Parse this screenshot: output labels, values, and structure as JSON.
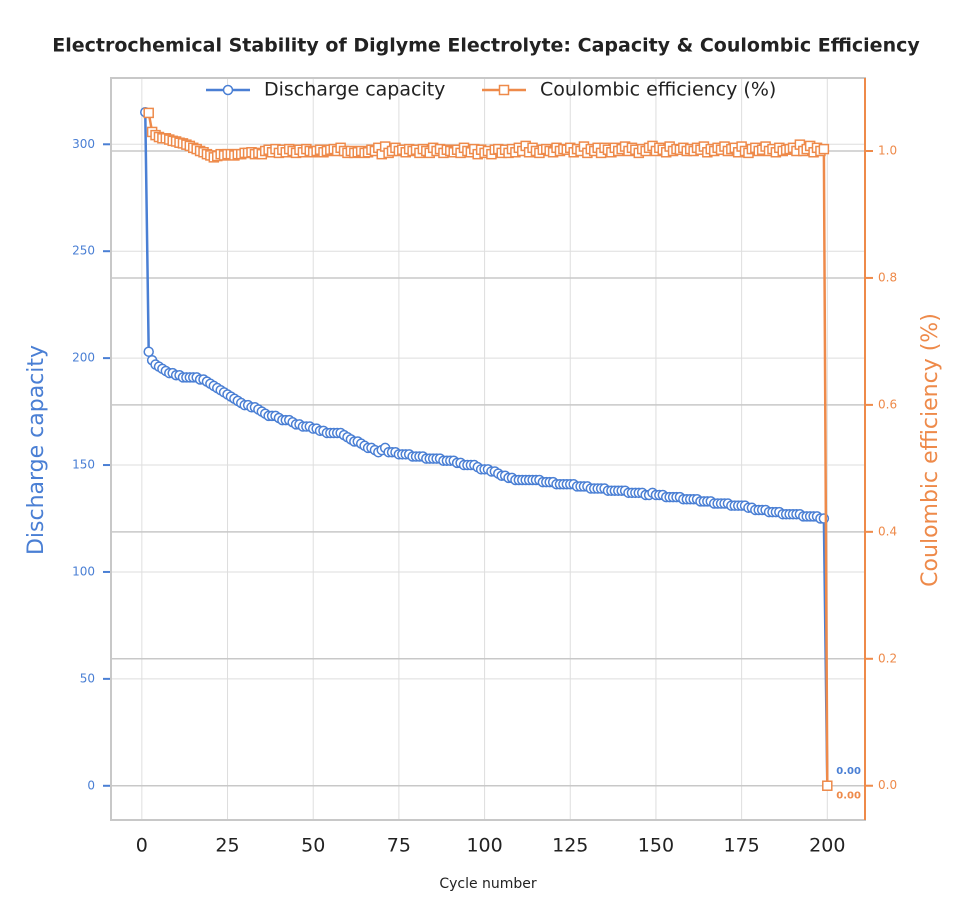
{
  "chart_data": {
    "type": "line",
    "title": "Electrochemical Stability of Diglyme Electrolyte: Capacity & Coulombic Efficiency",
    "xlabel": "Cycle number",
    "ylabel": "Discharge capacity",
    "y2label": "Coulombic efficiency (%)",
    "xlim": [
      -9,
      211
    ],
    "ylim": [
      -16,
      331
    ],
    "y2lim": [
      -0.054,
      1.115
    ],
    "xticks": [
      0,
      25,
      50,
      75,
      100,
      125,
      150,
      175,
      200
    ],
    "yticks": [
      0,
      50,
      100,
      150,
      200,
      250,
      300
    ],
    "y2ticks": [
      {
        "value": 0,
        "label": "0.0"
      },
      {
        "value": 0.2,
        "label": "0.2"
      },
      {
        "value": 0.4,
        "label": "0.4"
      },
      {
        "value": 0.6,
        "label": "0.6"
      },
      {
        "value": 0.8,
        "label": "0.8"
      },
      {
        "value": 1,
        "label": "1.0"
      }
    ],
    "grid": true,
    "legend": "upper center",
    "x": [
      1,
      2,
      3,
      4,
      5,
      6,
      7,
      8,
      9,
      10,
      11,
      12,
      13,
      14,
      15,
      16,
      17,
      18,
      19,
      20,
      21,
      22,
      23,
      24,
      25,
      26,
      27,
      28,
      29,
      30,
      31,
      32,
      33,
      34,
      35,
      36,
      37,
      38,
      39,
      40,
      41,
      42,
      43,
      44,
      45,
      46,
      47,
      48,
      49,
      50,
      51,
      52,
      53,
      54,
      55,
      56,
      57,
      58,
      59,
      60,
      61,
      62,
      63,
      64,
      65,
      66,
      67,
      68,
      69,
      70,
      71,
      72,
      73,
      74,
      75,
      76,
      77,
      78,
      79,
      80,
      81,
      82,
      83,
      84,
      85,
      86,
      87,
      88,
      89,
      90,
      91,
      92,
      93,
      94,
      95,
      96,
      97,
      98,
      99,
      100,
      101,
      102,
      103,
      104,
      105,
      106,
      107,
      108,
      109,
      110,
      111,
      112,
      113,
      114,
      115,
      116,
      117,
      118,
      119,
      120,
      121,
      122,
      123,
      124,
      125,
      126,
      127,
      128,
      129,
      130,
      131,
      132,
      133,
      134,
      135,
      136,
      137,
      138,
      139,
      140,
      141,
      142,
      143,
      144,
      145,
      146,
      147,
      148,
      149,
      150,
      151,
      152,
      153,
      154,
      155,
      156,
      157,
      158,
      159,
      160,
      161,
      162,
      163,
      164,
      165,
      166,
      167,
      168,
      169,
      170,
      171,
      172,
      173,
      174,
      175,
      176,
      177,
      178,
      179,
      180,
      181,
      182,
      183,
      184,
      185,
      186,
      187,
      188,
      189,
      190,
      191,
      192,
      193,
      194,
      195,
      196,
      197,
      198,
      199,
      200
    ],
    "series": [
      {
        "name": "Discharge capacity",
        "color": "#4a7fd4",
        "marker": "circle",
        "axis": "y",
        "values": [
          315,
          203,
          199,
          197,
          196,
          195,
          194,
          193,
          193,
          192,
          192,
          191,
          191,
          191,
          191,
          191,
          190,
          190,
          189,
          188,
          187,
          186,
          185,
          184,
          183,
          182,
          181,
          180,
          179,
          178,
          178,
          177,
          177,
          176,
          175,
          174,
          173,
          173,
          173,
          172,
          171,
          171,
          171,
          170,
          169,
          169,
          168,
          168,
          168,
          167,
          167,
          166,
          166,
          165,
          165,
          165,
          165,
          165,
          164,
          163,
          162,
          161,
          161,
          160,
          159,
          158,
          158,
          157,
          156,
          157,
          158,
          156,
          156,
          156,
          155,
          155,
          155,
          155,
          154,
          154,
          154,
          154,
          153,
          153,
          153,
          153,
          153,
          152,
          152,
          152,
          152,
          151,
          151,
          150,
          150,
          150,
          150,
          149,
          148,
          148,
          148,
          147,
          147,
          146,
          145,
          145,
          144,
          144,
          143,
          143,
          143,
          143,
          143,
          143,
          143,
          143,
          142,
          142,
          142,
          142,
          141,
          141,
          141,
          141,
          141,
          141,
          140,
          140,
          140,
          140,
          139,
          139,
          139,
          139,
          139,
          138,
          138,
          138,
          138,
          138,
          138,
          137,
          137,
          137,
          137,
          137,
          136,
          136,
          137,
          136,
          136,
          136,
          135,
          135,
          135,
          135,
          135,
          134,
          134,
          134,
          134,
          134,
          133,
          133,
          133,
          133,
          132,
          132,
          132,
          132,
          132,
          131,
          131,
          131,
          131,
          131,
          130,
          130,
          129,
          129,
          129,
          129,
          128,
          128,
          128,
          128,
          127,
          127,
          127,
          127,
          127,
          127,
          126,
          126,
          126,
          126,
          126,
          125,
          125,
          0
        ],
        "value_labels": {
          "199": "0.00"
        }
      },
      {
        "name": "Coulombic efficiency (%)",
        "color": "#ee8a4a",
        "marker": "square",
        "axis": "y2",
        "values": [
          null,
          1.06,
          1.03,
          1.025,
          1.022,
          1.02,
          1.02,
          1.018,
          1.016,
          1.015,
          1.013,
          1.012,
          1.01,
          1.008,
          1.005,
          1.003,
          1.0,
          0.998,
          0.995,
          0.993,
          0.99,
          0.992,
          0.995,
          0.993,
          0.995,
          0.995,
          0.993,
          0.995,
          0.995,
          0.997,
          0.997,
          0.998,
          0.995,
          0.997,
          0.995,
          1.0,
          1.002,
          0.998,
          1.003,
          0.997,
          1.002,
          0.998,
          1.003,
          1.0,
          0.997,
          1.002,
          0.998,
          1.003,
          1.0,
          0.998,
          1.0,
          1.002,
          0.998,
          1.0,
          1.002,
          1.003,
          1.0,
          1.005,
          1.0,
          0.997,
          1.0,
          0.997,
          0.998,
          1.0,
          0.997,
          0.998,
          1.002,
          1.0,
          1.005,
          0.995,
          1.007,
          0.997,
          1.0,
          1.005,
          1.0,
          1.002,
          0.998,
          1.003,
          1.0,
          1.002,
          0.997,
          1.003,
          1.0,
          0.997,
          1.005,
          1.0,
          1.003,
          0.997,
          1.002,
          1.0,
          0.998,
          1.002,
          0.997,
          1.005,
          1.0,
          0.998,
          1.003,
          0.995,
          1.002,
          0.997,
          1.0,
          0.995,
          1.002,
          1.003,
          0.997,
          1.002,
          0.997,
          1.003,
          0.998,
          1.005,
          1.0,
          1.008,
          0.998,
          1.005,
          1.0,
          0.997,
          1.002,
          1.003,
          1.0,
          0.998,
          1.005,
          1.0,
          1.003,
          1.002,
          1.005,
          0.998,
          1.003,
          1.0,
          1.007,
          0.997,
          1.003,
          1.0,
          1.005,
          0.997,
          1.005,
          1.002,
          0.998,
          1.005,
          1.0,
          1.003,
          1.007,
          1.0,
          1.005,
          1.002,
          0.997,
          1.003,
          1.0,
          1.005,
          1.008,
          1.0,
          1.005,
          1.002,
          0.998,
          1.007,
          1.0,
          1.003,
          1.002,
          1.005,
          1.0,
          1.003,
          1.0,
          1.005,
          1.002,
          1.007,
          0.998,
          1.003,
          1.0,
          1.005,
          1.002,
          1.007,
          1.0,
          1.003,
          1.005,
          0.998,
          1.007,
          1.0,
          0.997,
          1.003,
          1.005,
          1.0,
          1.002,
          1.007,
          1.0,
          1.003,
          0.998,
          1.005,
          1.0,
          1.002,
          1.003,
          1.005,
          1.0,
          1.01,
          1.0,
          1.003,
          1.008,
          0.998,
          1.005,
          1.0,
          1.003,
          0
        ],
        "value_labels": {
          "199": "0.00"
        }
      }
    ]
  }
}
